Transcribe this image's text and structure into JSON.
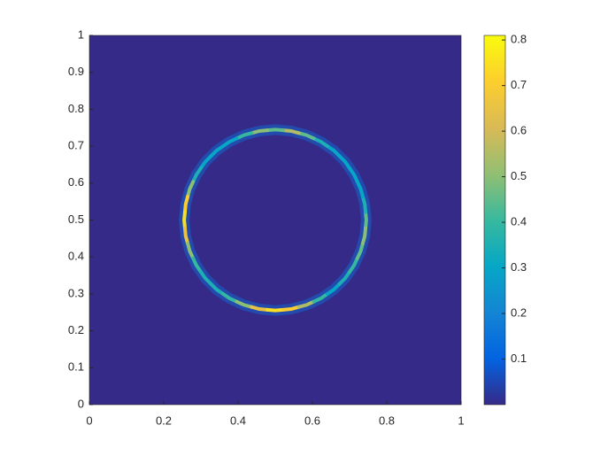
{
  "chart_data": {
    "type": "heatmap",
    "colormap": "parula",
    "xlim": [
      0,
      1
    ],
    "ylim": [
      0,
      1
    ],
    "xticks": [
      0,
      0.2,
      0.4,
      0.6,
      0.8,
      1
    ],
    "yticks": [
      0,
      0.1,
      0.2,
      0.3,
      0.4,
      0.5,
      0.6,
      0.7,
      0.8,
      0.9,
      1
    ],
    "clim": [
      0,
      0.81
    ],
    "cticks": [
      0.1,
      0.2,
      0.3,
      0.4,
      0.5,
      0.6,
      0.7,
      0.8
    ],
    "background": 0,
    "points": {
      "x": [
        0.745,
        0.741,
        0.73,
        0.712,
        0.688,
        0.658,
        0.623,
        0.584,
        0.543,
        0.5,
        0.457,
        0.416,
        0.377,
        0.342,
        0.312,
        0.288,
        0.27,
        0.259,
        0.255,
        0.259,
        0.27,
        0.288,
        0.312,
        0.342,
        0.377,
        0.416,
        0.457,
        0.5,
        0.543,
        0.584,
        0.623,
        0.658,
        0.688,
        0.712,
        0.73,
        0.741
      ],
      "y": [
        0.5,
        0.543,
        0.584,
        0.623,
        0.658,
        0.688,
        0.712,
        0.73,
        0.741,
        0.745,
        0.741,
        0.73,
        0.712,
        0.688,
        0.658,
        0.623,
        0.584,
        0.543,
        0.5,
        0.457,
        0.416,
        0.377,
        0.342,
        0.312,
        0.288,
        0.27,
        0.259,
        0.255,
        0.259,
        0.27,
        0.288,
        0.312,
        0.342,
        0.377,
        0.416,
        0.457
      ],
      "values": [
        0.45,
        0.35,
        0.3,
        0.3,
        0.3,
        0.3,
        0.35,
        0.45,
        0.55,
        0.45,
        0.5,
        0.4,
        0.3,
        0.3,
        0.3,
        0.35,
        0.5,
        0.7,
        0.75,
        0.65,
        0.5,
        0.4,
        0.35,
        0.35,
        0.4,
        0.5,
        0.65,
        0.75,
        0.7,
        0.55,
        0.4,
        0.3,
        0.35,
        0.4,
        0.45,
        0.5
      ]
    }
  }
}
